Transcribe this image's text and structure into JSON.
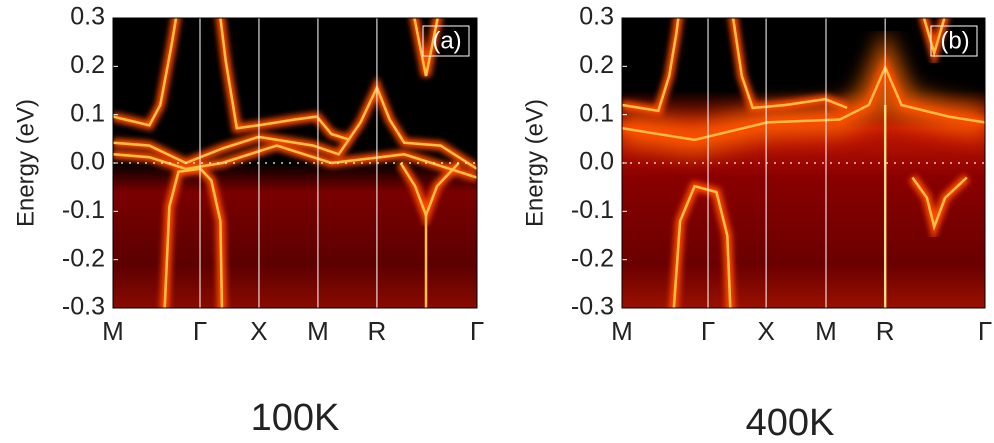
{
  "chart_data": [
    {
      "type": "heatmap",
      "panel_label": "(a)",
      "ylabel": "Energy (eV)",
      "caption": "100K",
      "ylim": [
        -0.3,
        0.3
      ],
      "yticks": [
        0.3,
        0.2,
        0.1,
        {
          "value": 0,
          "label": "0.0"
        },
        -0.1,
        -0.2,
        -0.3
      ],
      "categories": [
        "M",
        "Γ",
        "X",
        "M",
        "R",
        "Γ"
      ]
    },
    {
      "type": "heatmap",
      "panel_label": "(b)",
      "ylabel": "Energy (eV)",
      "caption": "400K",
      "ylim": [
        -0.3,
        0.3
      ],
      "yticks": [
        0.3,
        0.2,
        0.1,
        {
          "value": 0,
          "label": "0.0"
        },
        -0.1,
        -0.2,
        -0.3
      ],
      "categories": [
        "M",
        "Γ",
        "X",
        "M",
        "R",
        "Γ"
      ]
    }
  ]
}
